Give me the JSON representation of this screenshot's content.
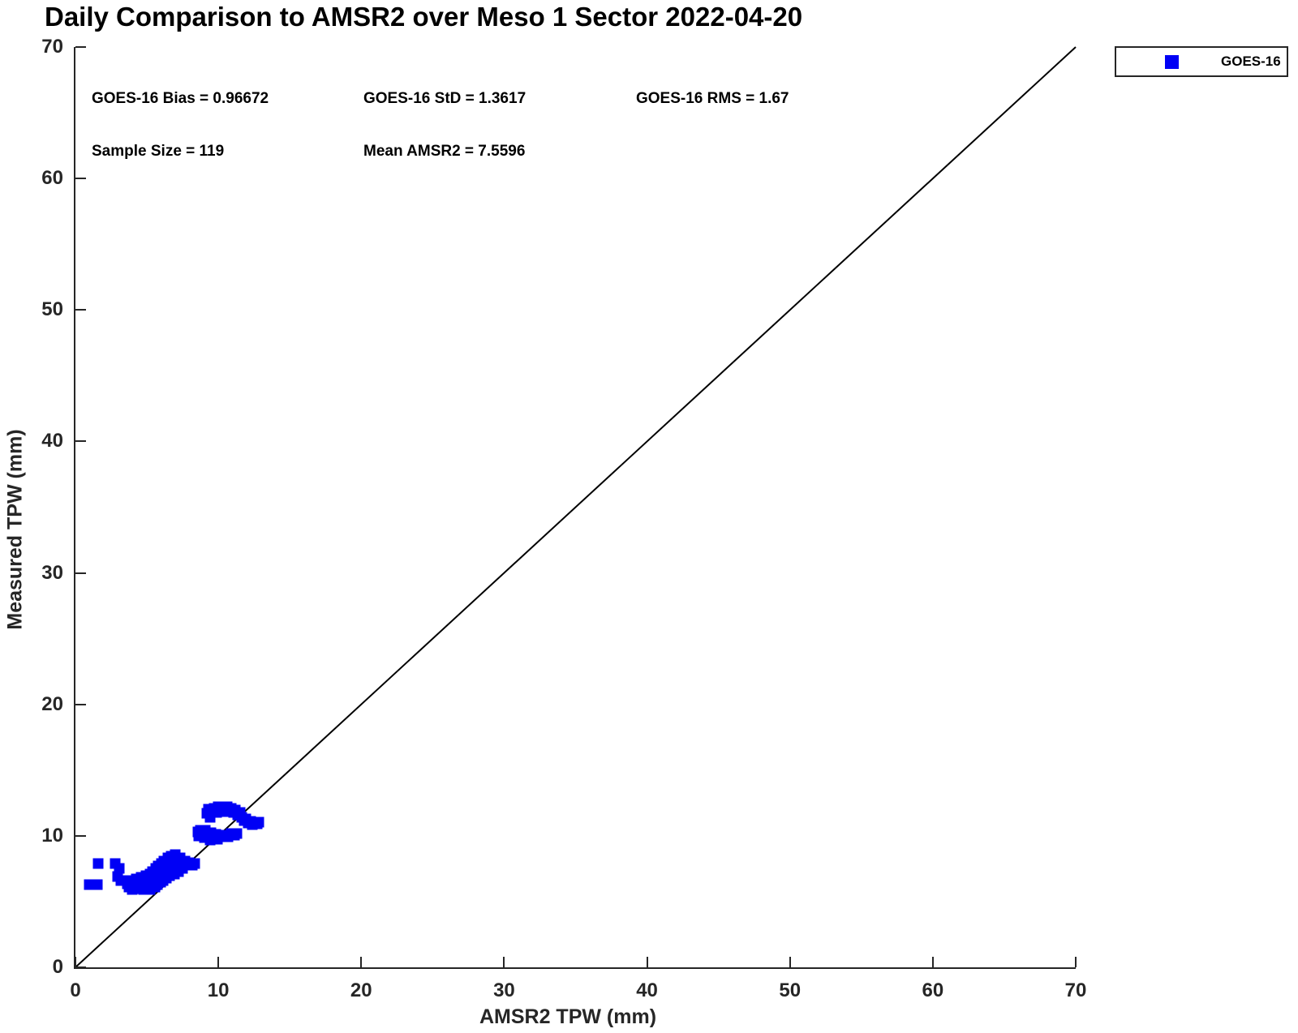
{
  "title": "Daily Comparison to AMSR2 over Meso 1 Sector 2022-04-20",
  "annotations": {
    "bias": "GOES-16 Bias = 0.96672",
    "std": "GOES-16 StD = 1.3617",
    "rms": "GOES-16 RMS = 1.67",
    "sample_size": "Sample Size = 119",
    "mean_amsr2": "Mean AMSR2 = 7.5596"
  },
  "legend": {
    "position": "top-right-outside",
    "entries": [
      {
        "label": "GOES-16",
        "marker": "square",
        "marker_color": "#0000f5"
      }
    ]
  },
  "colors": {
    "marker": "#0000f5",
    "axis": "#262626",
    "line": "#000000",
    "background": "#ffffff"
  },
  "chart_data": {
    "type": "scatter",
    "title": "Daily Comparison to AMSR2 over Meso 1 Sector 2022-04-20",
    "xlabel": "AMSR2 TPW (mm)",
    "ylabel": "Measured TPW (mm)",
    "xlim": [
      0,
      70
    ],
    "ylim": [
      0,
      70
    ],
    "x_ticks": [
      0,
      10,
      20,
      30,
      40,
      50,
      60,
      70
    ],
    "y_ticks": [
      0,
      10,
      20,
      30,
      40,
      50,
      60,
      70
    ],
    "grid": false,
    "box": false,
    "legend_position": "top-right-outside",
    "reference_line": {
      "type": "identity",
      "from": [
        0,
        0
      ],
      "to": [
        70,
        70
      ],
      "color": "#000000",
      "width": 2
    },
    "stats": {
      "goes16_bias": 0.96672,
      "goes16_std": 1.3617,
      "goes16_rms": 1.67,
      "sample_size": 119,
      "mean_amsr2": 7.5596
    },
    "series": [
      {
        "name": "GOES-16",
        "marker": "square",
        "color": "#0000f5",
        "points": [
          [
            0.95,
            6.3
          ],
          [
            1.55,
            6.3
          ],
          [
            1.6,
            7.9
          ],
          [
            2.8,
            7.9
          ],
          [
            3.05,
            7.55
          ],
          [
            2.95,
            6.9
          ],
          [
            3.2,
            6.6
          ],
          [
            3.65,
            6.35
          ],
          [
            3.75,
            6.1
          ],
          [
            3.85,
            6.6
          ],
          [
            3.95,
            6.25
          ],
          [
            4.0,
            5.95
          ],
          [
            4.1,
            6.45
          ],
          [
            4.15,
            6.15
          ],
          [
            4.25,
            6.7
          ],
          [
            4.3,
            6.35
          ],
          [
            4.4,
            6.0
          ],
          [
            4.45,
            6.55
          ],
          [
            4.5,
            6.2
          ],
          [
            4.6,
            6.85
          ],
          [
            4.65,
            6.45
          ],
          [
            4.7,
            6.1
          ],
          [
            4.75,
            5.95
          ],
          [
            4.8,
            6.65
          ],
          [
            4.9,
            6.3
          ],
          [
            4.95,
            7.0
          ],
          [
            5.0,
            6.55
          ],
          [
            5.05,
            6.15
          ],
          [
            5.1,
            6.8
          ],
          [
            5.15,
            6.4
          ],
          [
            5.2,
            5.95
          ],
          [
            5.25,
            7.1
          ],
          [
            5.3,
            6.6
          ],
          [
            5.35,
            6.25
          ],
          [
            5.4,
            7.3
          ],
          [
            5.45,
            6.9
          ],
          [
            5.5,
            6.5
          ],
          [
            5.55,
            6.1
          ],
          [
            5.6,
            7.5
          ],
          [
            5.65,
            7.0
          ],
          [
            5.7,
            6.6
          ],
          [
            5.75,
            6.3
          ],
          [
            5.8,
            7.7
          ],
          [
            5.85,
            7.2
          ],
          [
            5.9,
            6.8
          ],
          [
            5.95,
            6.45
          ],
          [
            6.0,
            7.9
          ],
          [
            6.05,
            7.4
          ],
          [
            6.1,
            7.0
          ],
          [
            6.15,
            6.6
          ],
          [
            6.2,
            8.1
          ],
          [
            6.25,
            7.6
          ],
          [
            6.3,
            7.15
          ],
          [
            6.35,
            6.8
          ],
          [
            6.45,
            8.3
          ],
          [
            6.5,
            7.8
          ],
          [
            6.55,
            7.35
          ],
          [
            6.6,
            6.95
          ],
          [
            6.7,
            8.45
          ],
          [
            6.75,
            7.95
          ],
          [
            6.8,
            7.5
          ],
          [
            6.9,
            7.1
          ],
          [
            7.0,
            8.55
          ],
          [
            7.05,
            8.0
          ],
          [
            7.1,
            7.6
          ],
          [
            7.2,
            7.25
          ],
          [
            7.3,
            8.3
          ],
          [
            7.4,
            7.85
          ],
          [
            7.5,
            7.5
          ],
          [
            7.65,
            8.1
          ],
          [
            7.8,
            7.75
          ],
          [
            7.95,
            7.95
          ],
          [
            8.15,
            7.8
          ],
          [
            8.35,
            7.9
          ],
          [
            9.2,
            11.7
          ],
          [
            9.3,
            12.0
          ],
          [
            9.4,
            11.4
          ],
          [
            9.55,
            11.9
          ],
          [
            9.7,
            12.1
          ],
          [
            9.85,
            11.8
          ],
          [
            10.0,
            12.2
          ],
          [
            10.15,
            11.9
          ],
          [
            10.3,
            12.15
          ],
          [
            10.45,
            11.85
          ],
          [
            10.6,
            12.2
          ],
          [
            10.75,
            11.95
          ],
          [
            10.9,
            12.1
          ],
          [
            11.05,
            11.8
          ],
          [
            11.2,
            11.95
          ],
          [
            11.35,
            11.6
          ],
          [
            11.5,
            11.75
          ],
          [
            11.65,
            11.4
          ],
          [
            11.8,
            11.15
          ],
          [
            11.95,
            11.3
          ],
          [
            12.1,
            10.95
          ],
          [
            12.25,
            11.1
          ],
          [
            12.4,
            10.85
          ],
          [
            12.55,
            11.0
          ],
          [
            12.7,
            10.9
          ],
          [
            12.85,
            11.05
          ],
          [
            8.55,
            10.3
          ],
          [
            8.65,
            10.0
          ],
          [
            8.75,
            10.45
          ],
          [
            8.9,
            10.15
          ],
          [
            9.0,
            9.85
          ],
          [
            9.1,
            10.4
          ],
          [
            9.25,
            10.05
          ],
          [
            9.4,
            9.7
          ],
          [
            9.5,
            10.25
          ],
          [
            9.65,
            9.9
          ],
          [
            9.8,
            10.1
          ],
          [
            9.95,
            9.75
          ],
          [
            10.1,
            10.0
          ],
          [
            10.3,
            9.9
          ],
          [
            10.5,
            10.05
          ],
          [
            10.7,
            9.95
          ],
          [
            10.9,
            10.15
          ],
          [
            11.1,
            10.05
          ],
          [
            11.3,
            10.2
          ]
        ]
      }
    ]
  }
}
